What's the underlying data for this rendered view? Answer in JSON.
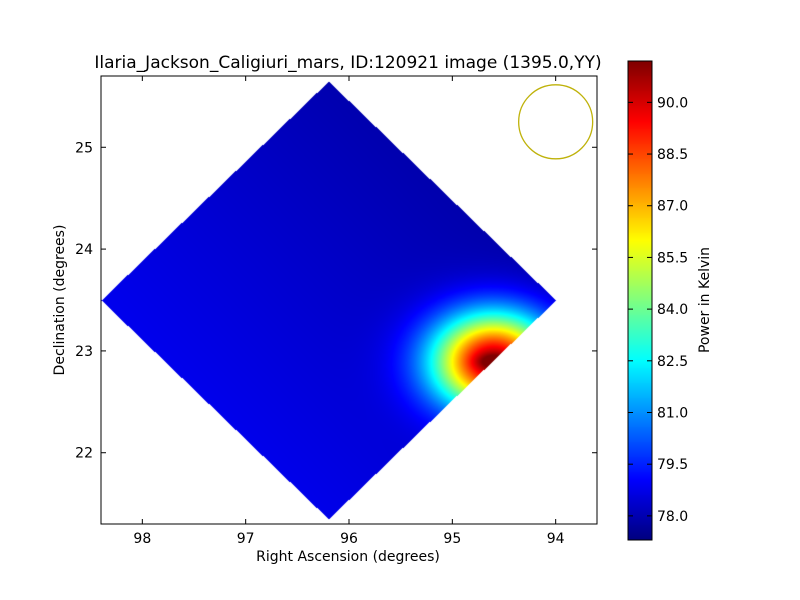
{
  "chart_data": {
    "type": "heatmap",
    "title": "Ilaria_Jackson_Caligiuri_mars, ID:120921 image (1395.0,YY)",
    "xlabel": "Right Ascension (degrees)",
    "ylabel": "Declination (degrees)",
    "xlim": [
      98.4,
      93.6
    ],
    "ylim": [
      21.3,
      25.7
    ],
    "x_reversed": true,
    "xticks": [
      "98",
      "97",
      "96",
      "95",
      "94"
    ],
    "yticks": [
      "22",
      "23",
      "24",
      "25"
    ],
    "colorbar": {
      "label": "Power in Kelvin",
      "range": [
        77.3,
        91.2
      ],
      "ticks": [
        "78.0",
        "79.5",
        "81.0",
        "82.5",
        "84.0",
        "85.5",
        "87.0",
        "88.5",
        "90.0"
      ],
      "colormap": "jet"
    },
    "map_region": {
      "shape": "diamond",
      "corners_ra_dec": [
        [
          96.0,
          25.65
        ],
        [
          94.0,
          23.5
        ],
        [
          96.0,
          21.35
        ],
        [
          98.4,
          23.5
        ]
      ]
    },
    "peak": {
      "ra": 94.6,
      "dec": 22.9,
      "value": 91.0
    },
    "background_value": 77.5,
    "beam_circle": {
      "ra": 94.0,
      "dec": 25.25,
      "color": "#bfb20a"
    }
  }
}
